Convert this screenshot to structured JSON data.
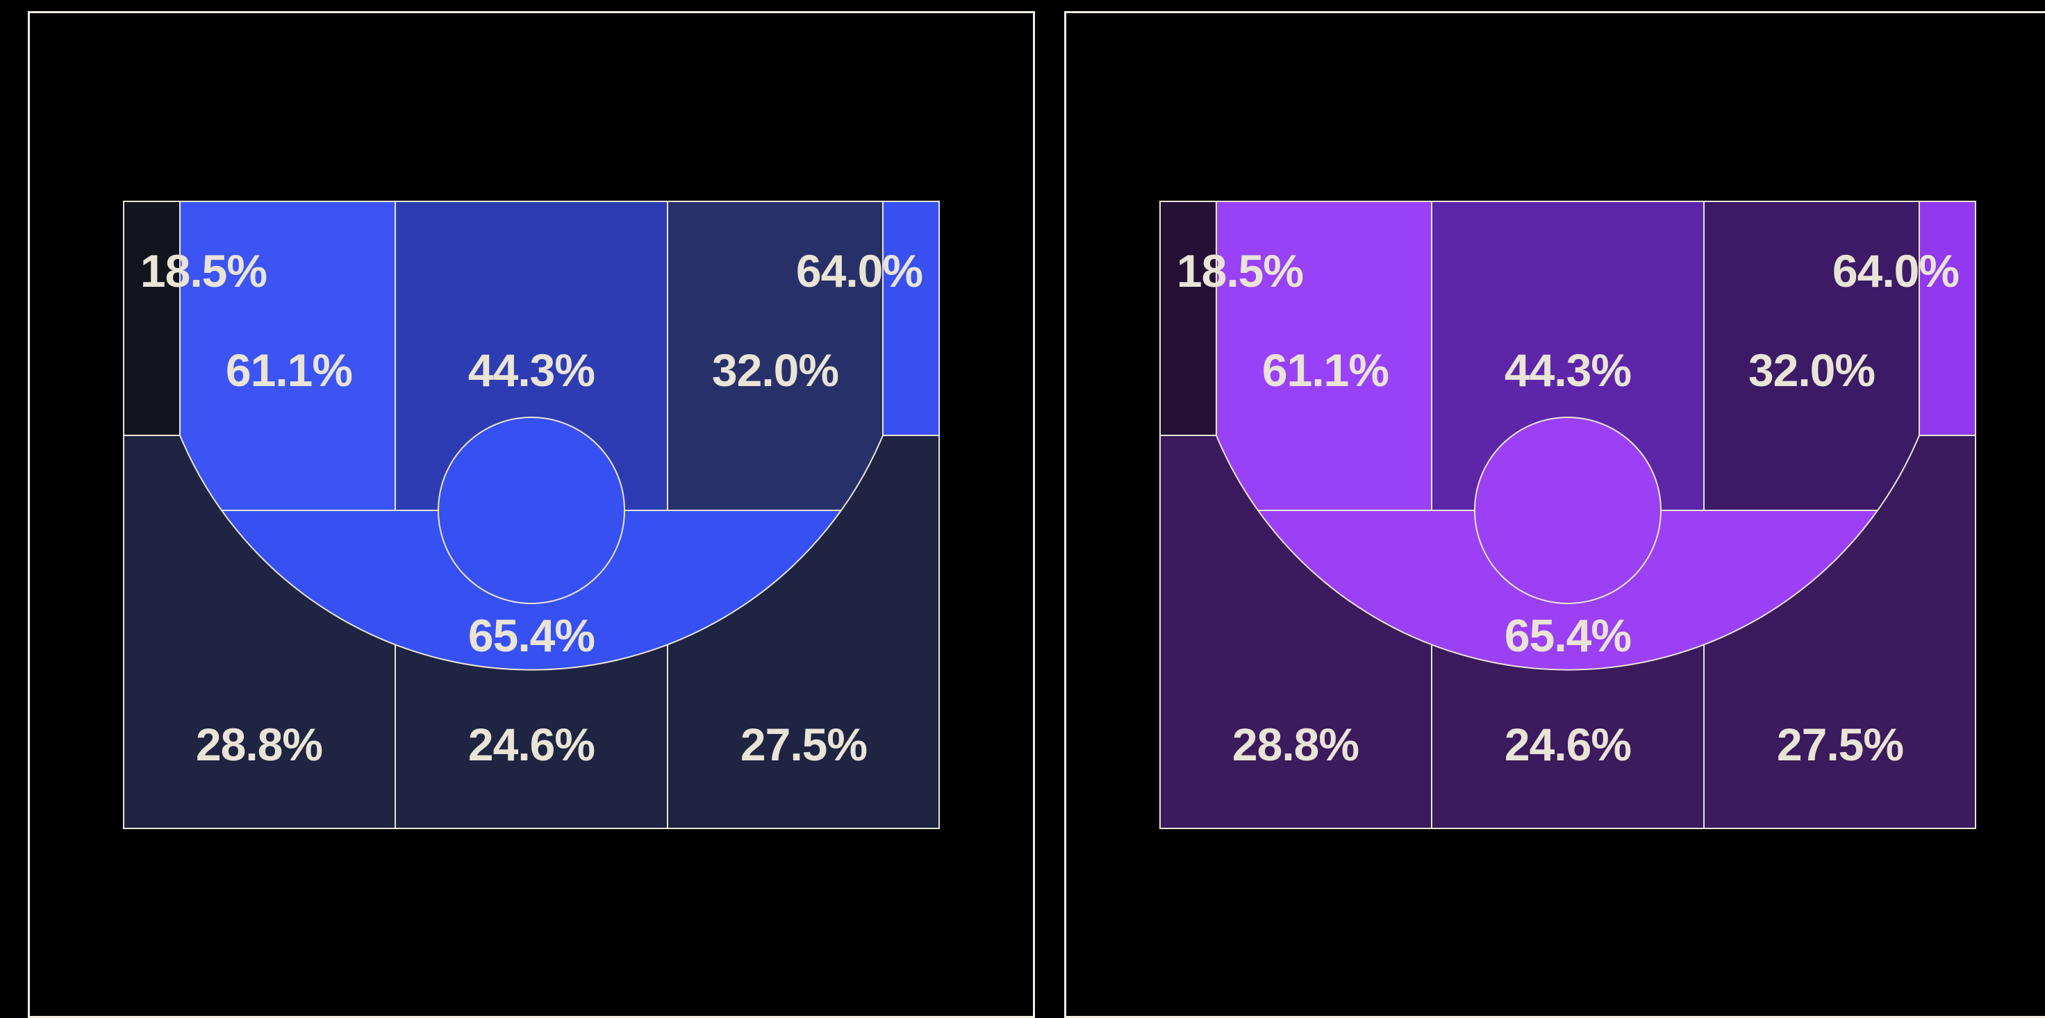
{
  "page": {
    "background": "#000000",
    "panel_border_color": "#f2ecdd"
  },
  "chart_data": [
    {
      "type": "heatmap",
      "subtype": "basketball-halfcourt-shooting-zones",
      "palette": "blue",
      "background": "#000000",
      "line_color": "#ebe6d7",
      "text_color": "#e9e4d6",
      "legend": "none",
      "zones": [
        {
          "zone": "left-corner-three",
          "label": "18.5%",
          "value_pct": 18.5,
          "color": "#12151e"
        },
        {
          "zone": "left-wing-midrange",
          "label": "61.1%",
          "value_pct": 61.1,
          "color": "#3b54f3"
        },
        {
          "zone": "center-midrange",
          "label": "44.3%",
          "value_pct": 44.3,
          "color": "#2d3cb2"
        },
        {
          "zone": "right-wing-midrange",
          "label": "32.0%",
          "value_pct": 32.0,
          "color": "#273068"
        },
        {
          "zone": "right-corner-three",
          "label": "64.0%",
          "value_pct": 64.0,
          "color": "#3850f0"
        },
        {
          "zone": "paint-restricted",
          "label": "65.4%",
          "value_pct": 65.4,
          "color": "#3750f2"
        },
        {
          "zone": "left-above-break-three",
          "label": "28.8%",
          "value_pct": 28.8,
          "color": "#1e2442"
        },
        {
          "zone": "center-above-break-three",
          "label": "24.6%",
          "value_pct": 24.6,
          "color": "#1e2442"
        },
        {
          "zone": "right-above-break-three",
          "label": "27.5%",
          "value_pct": 27.5,
          "color": "#1e2442"
        }
      ]
    },
    {
      "type": "heatmap",
      "subtype": "basketball-halfcourt-shooting-zones",
      "palette": "purple",
      "background": "#000000",
      "line_color": "#ebe6d7",
      "text_color": "#e9e4d6",
      "legend": "none",
      "zones": [
        {
          "zone": "left-corner-three",
          "label": "18.5%",
          "value_pct": 18.5,
          "color": "#251036"
        },
        {
          "zone": "left-wing-midrange",
          "label": "61.1%",
          "value_pct": 61.1,
          "color": "#9941f6"
        },
        {
          "zone": "center-midrange",
          "label": "44.3%",
          "value_pct": 44.3,
          "color": "#5d26a8"
        },
        {
          "zone": "right-wing-midrange",
          "label": "32.0%",
          "value_pct": 32.0,
          "color": "#3c1a66"
        },
        {
          "zone": "right-corner-three",
          "label": "64.0%",
          "value_pct": 64.0,
          "color": "#9238ef"
        },
        {
          "zone": "paint-restricted",
          "label": "65.4%",
          "value_pct": 65.4,
          "color": "#9b40f4"
        },
        {
          "zone": "left-above-break-three",
          "label": "28.8%",
          "value_pct": 28.8,
          "color": "#3b1a5e"
        },
        {
          "zone": "center-above-break-three",
          "label": "24.6%",
          "value_pct": 24.6,
          "color": "#3b1a5e"
        },
        {
          "zone": "right-above-break-three",
          "label": "27.5%",
          "value_pct": 27.5,
          "color": "#3b1a5e"
        }
      ]
    }
  ]
}
